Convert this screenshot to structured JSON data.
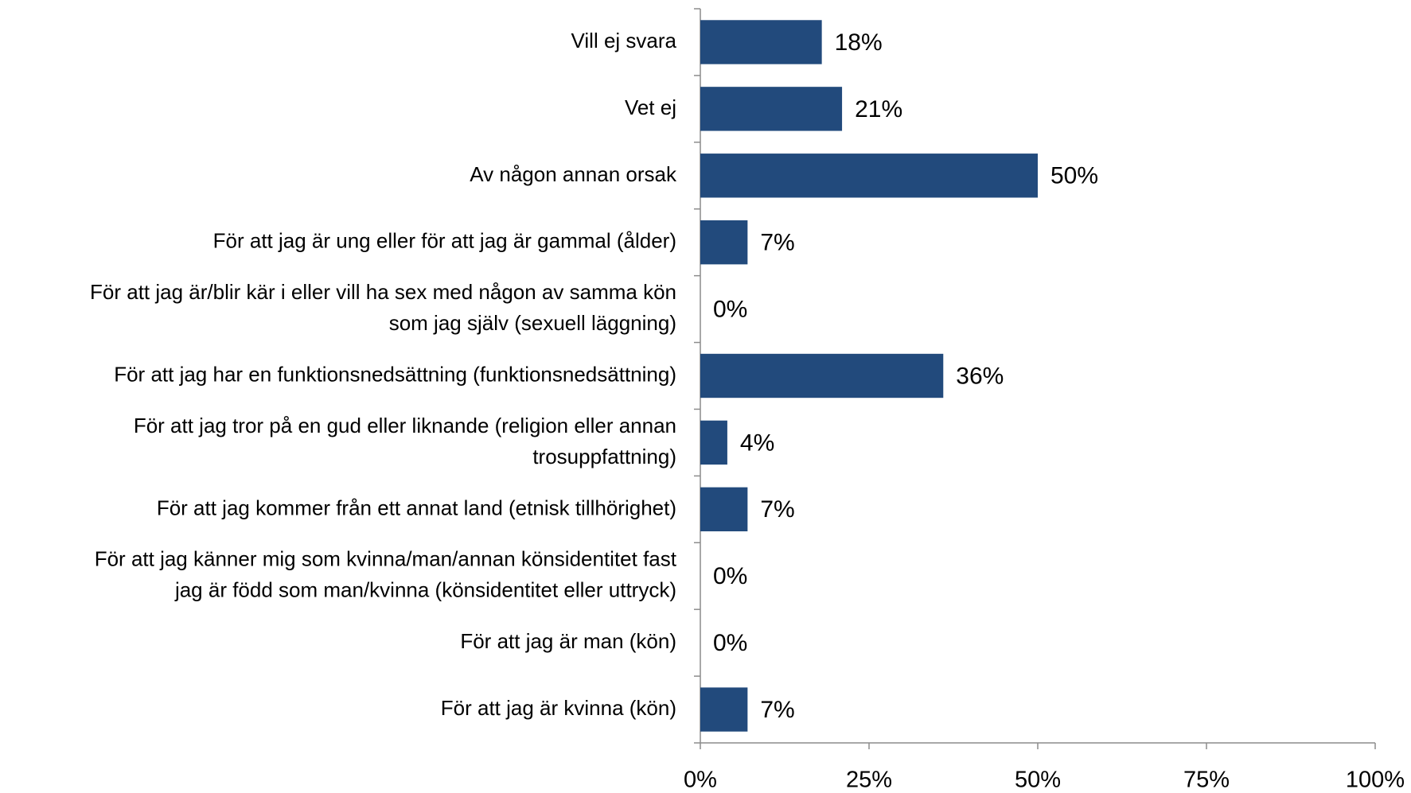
{
  "chart_data": {
    "type": "bar",
    "orientation": "horizontal",
    "categories": [
      "Vill ej svara",
      "Vet ej",
      "Av någon annan orsak",
      "För att jag är ung eller för att jag är gammal (ålder)",
      "För att jag är/blir kär i eller vill ha sex med någon av samma kön\nsom jag själv (sexuell läggning)",
      "För att jag har en funktionsnedsättning (funktionsnedsättning)",
      "För att jag tror på en gud eller liknande (religion eller annan\ntrosuppfattning)",
      "För att jag kommer från ett annat land (etnisk tillhörighet)",
      "För att jag känner mig som kvinna/man/annan könsidentitet fast\njag är född som man/kvinna (könsidentitet eller uttryck)",
      "För att jag är man (kön)",
      "För att jag är kvinna (kön)"
    ],
    "values": [
      18,
      21,
      50,
      7,
      0,
      36,
      4,
      7,
      0,
      0,
      7
    ],
    "value_labels": [
      "18%",
      "21%",
      "50%",
      "7%",
      "0%",
      "36%",
      "4%",
      "7%",
      "0%",
      "0%",
      "7%"
    ],
    "color": "#224a7c",
    "xlim": [
      0,
      100
    ],
    "xticks": [
      {
        "value": 0,
        "label": "0%"
      },
      {
        "value": 25,
        "label": "25%"
      },
      {
        "value": 50,
        "label": "50%"
      },
      {
        "value": 75,
        "label": "75%"
      },
      {
        "value": 100,
        "label": "100%"
      }
    ],
    "grid": false
  }
}
